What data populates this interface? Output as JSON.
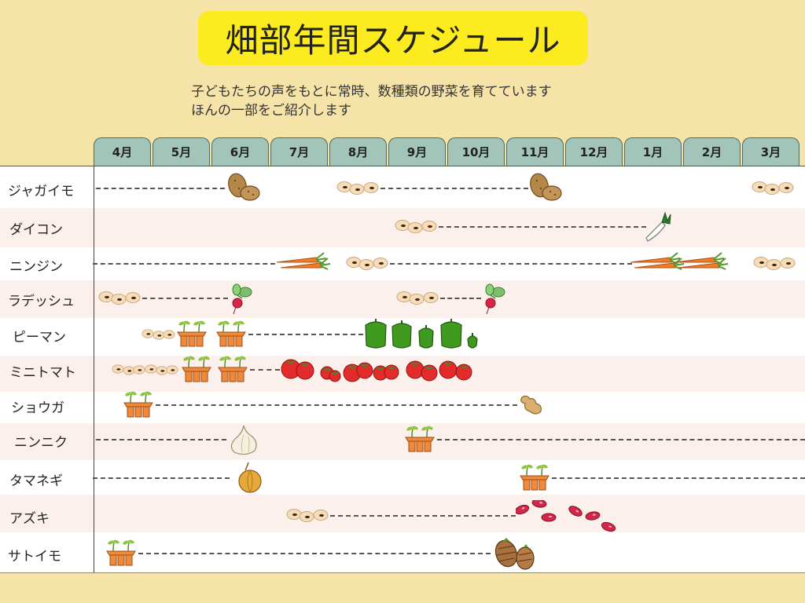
{
  "header": {
    "title": "畑部年間スケジュール",
    "subtitle_line1": "子どもたちの声をもとに常時、数種類の野菜を育てています",
    "subtitle_line2": "ほんの一部をご紹介します"
  },
  "months": [
    "4月",
    "5月",
    "6月",
    "7月",
    "8月",
    "9月",
    "10月",
    "11月",
    "12月",
    "1月",
    "2月",
    "3月"
  ],
  "colors": {
    "background": "#f6e3a8",
    "title_highlight": "#fbeb1f",
    "month_tab": "#a3c4b8",
    "row_light": "#ffffff",
    "row_tint": "#fbf0ec"
  },
  "legend_icons": {
    "seed": "seeds-icon",
    "sprout": "seedling-pot-icon"
  },
  "vegetables": [
    {
      "name": "ジャガイモ",
      "harvest_icon": "potato-icon"
    },
    {
      "name": "ダイコン",
      "harvest_icon": "daikon-icon"
    },
    {
      "name": "ニンジン",
      "harvest_icon": "carrot-icon"
    },
    {
      "name": "ラデッシュ",
      "harvest_icon": "radish-icon"
    },
    {
      "name": "ピーマン",
      "harvest_icon": "green-pepper-icon"
    },
    {
      "name": "ミニトマト",
      "harvest_icon": "tomato-icon"
    },
    {
      "name": "ショウガ",
      "harvest_icon": "ginger-icon"
    },
    {
      "name": "ニンニク",
      "harvest_icon": "garlic-icon"
    },
    {
      "name": "タマネギ",
      "harvest_icon": "onion-icon"
    },
    {
      "name": "アズキ",
      "harvest_icon": "azuki-bean-icon"
    },
    {
      "name": "サトイモ",
      "harvest_icon": "taro-icon"
    }
  ]
}
